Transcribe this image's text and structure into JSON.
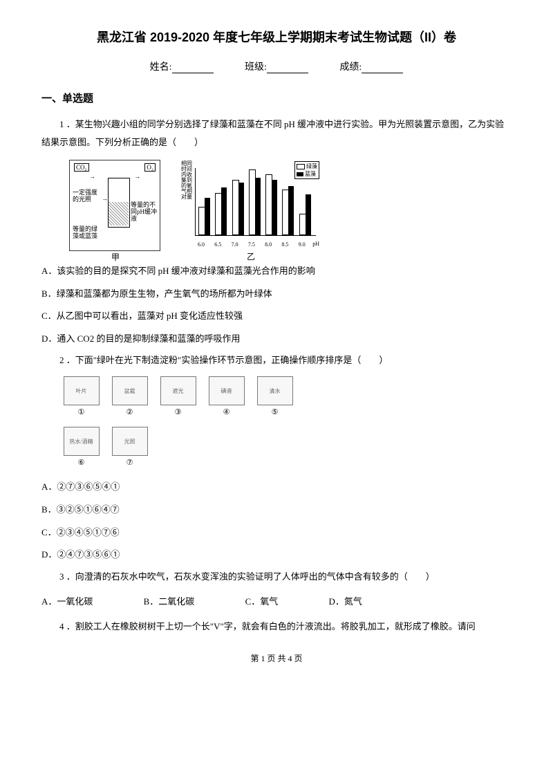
{
  "title": "黑龙江省 2019-2020 年度七年级上学期期末考试生物试题（II）卷",
  "header": {
    "name_label": "姓名:",
    "class_label": "班级:",
    "score_label": "成绩:"
  },
  "section1_title": "一、单选题",
  "q1": {
    "text": "1 ．某生物兴趣小组的同学分别选择了绿藻和蓝藻在不同 pH 缓冲液中进行实验。甲为光照装置示意图，乙为实验结果示意图。下列分析正确的是（　　）",
    "apparatus": {
      "co2": "CO₂",
      "o2": "O₂",
      "light": "一定强度的光照",
      "algae": "等量的绿藻或蓝藻",
      "label_jia": "甲",
      "buffer": "等量的不同pH缓冲液"
    },
    "chart": {
      "ylabel": "相同时间内收集到的氧气相对量",
      "categories": [
        "6.0",
        "6.5",
        "7.0",
        "7.5",
        "8.0",
        "8.5",
        "9.0"
      ],
      "xaxis_label": "pH",
      "series_green_label": "绿藻",
      "series_blue_label": "蓝藻",
      "green_values": [
        40,
        60,
        80,
        95,
        88,
        65,
        30
      ],
      "blue_values": [
        55,
        70,
        78,
        85,
        82,
        72,
        60
      ],
      "max_value": 100,
      "green_color": "#ffffff",
      "blue_color": "#000000",
      "border_color": "#000000",
      "label_yi": "乙"
    },
    "optA": "A．该实验的目的是探究不同 pH 缓冲液对绿藻和蓝藻光合作用的影响",
    "optB": "B．绿藻和蓝藻都为原生生物，产生氧气的场所都为叶绿体",
    "optC": "C．从乙图中可以看出，蓝藻对 pH 变化适应性较强",
    "optD": "D．通入 CO2 的目的是抑制绿藻和蓝藻的呼吸作用"
  },
  "q2": {
    "text": "2 ．下面\"绿叶在光下制造淀粉\"实验操作环节示意图，正确操作顺序排序是（　　）",
    "steps": [
      "①",
      "②",
      "③",
      "④",
      "⑤",
      "⑥",
      "⑦"
    ],
    "step_hints": [
      "叶片",
      "盆栽",
      "遮光",
      "碘液",
      "清水",
      "热水/酒精",
      "光照"
    ],
    "note5": "清水",
    "note6": "热水 酒精",
    "optA": "A．②⑦③⑥⑤④①",
    "optB": "B．③②⑤①⑥④⑦",
    "optC": "C．②③④⑤①⑦⑥",
    "optD": "D．②④⑦③⑤⑥①"
  },
  "q3": {
    "text": "3 ．向澄清的石灰水中吹气，石灰水变浑浊的实验证明了人体呼出的气体中含有较多的（　　）",
    "optA": "A．一氧化碳",
    "optB": "B．二氧化碳",
    "optC": "C．氧气",
    "optD": "D．氮气"
  },
  "q4": {
    "text": "4 ．割胶工人在橡胶树树干上切一个长\"V\"字，就会有白色的汁液流出。将胶乳加工，就形成了橡胶。请问"
  },
  "footer": "第 1 页 共 4 页"
}
